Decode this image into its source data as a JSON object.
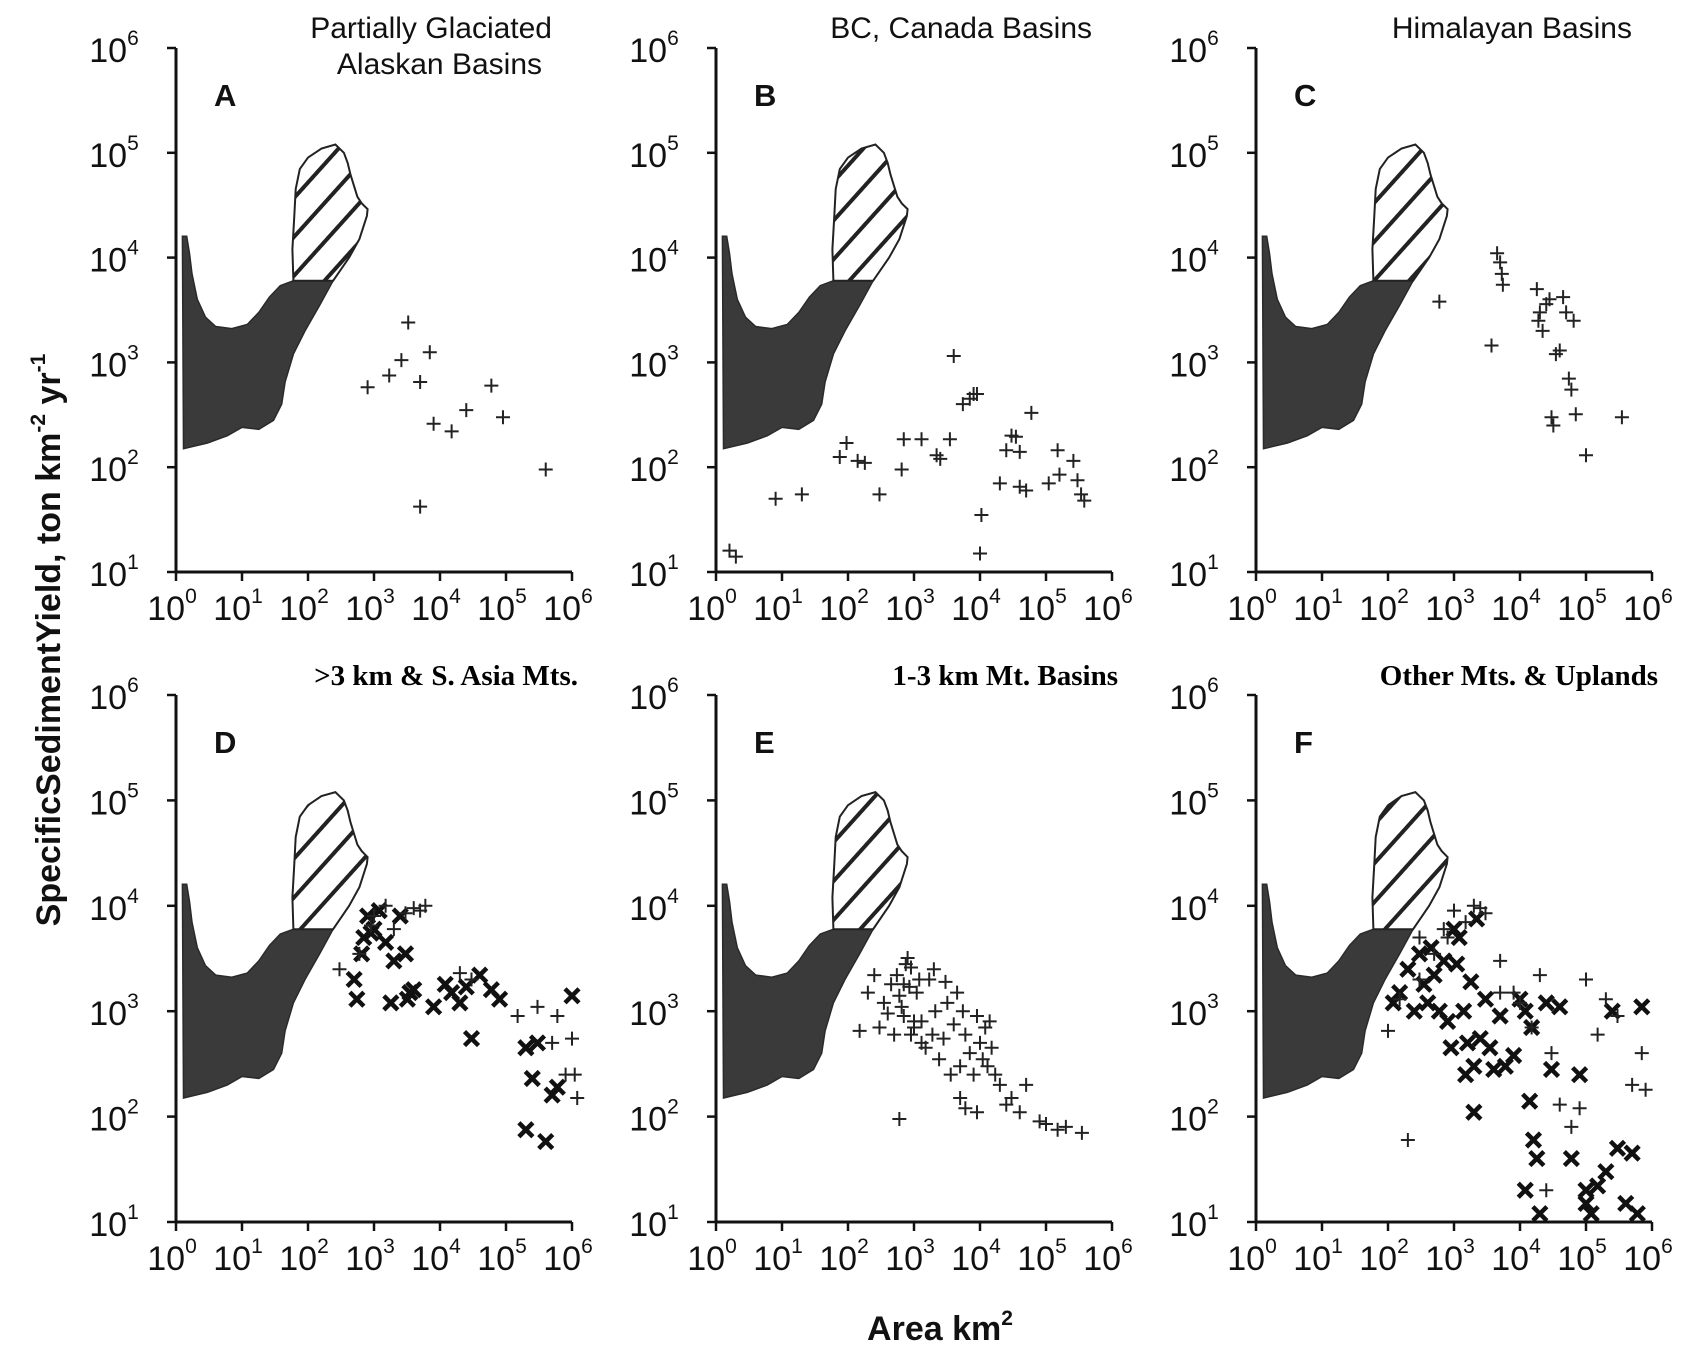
{
  "figure": {
    "ylabel": "SpecificSedimentYield, ton km-2 yr-1",
    "ylabel_parts": [
      "SpecificSedimentYield, ton km",
      "-2",
      " yr",
      "-1"
    ],
    "xlabel": "Area km2",
    "xlabel_parts": [
      "Area km",
      "2"
    ]
  },
  "chart_data": [
    {
      "type": "scatter",
      "panel": "A",
      "title": "Partially Glaciated Alaskan Basins",
      "title_lines": [
        "Partially Glaciated",
        "Alaskan Basins"
      ],
      "title_bold": false,
      "xlim": [
        1,
        1000000
      ],
      "ylim": [
        10,
        1000000
      ],
      "xscale": "log",
      "yscale": "log",
      "x_ticks": [
        1,
        10,
        100,
        1000,
        10000,
        100000,
        1000000
      ],
      "y_ticks": [
        10,
        100,
        1000,
        10000,
        100000,
        1000000
      ],
      "series": [
        {
          "marker": "+",
          "x": [
            800,
            1700,
            2600,
            3300,
            5000,
            7000,
            8000,
            15000,
            25000,
            60000,
            90000,
            400000,
            5000
          ],
          "y": [
            580,
            750,
            1050,
            2400,
            650,
            1250,
            260,
            220,
            350,
            600,
            300,
            95,
            42
          ]
        }
      ]
    },
    {
      "type": "scatter",
      "panel": "B",
      "title": "BC, Canada Basins",
      "title_lines": [
        "BC, Canada Basins"
      ],
      "title_bold": false,
      "xlim": [
        1,
        1000000
      ],
      "ylim": [
        10,
        1000000
      ],
      "xscale": "log",
      "yscale": "log",
      "x_ticks": [
        1,
        10,
        100,
        1000,
        10000,
        100000,
        1000000
      ],
      "y_ticks": [
        10,
        100,
        1000,
        10000,
        100000,
        1000000
      ],
      "series": [
        {
          "marker": "+",
          "x": [
            1.6,
            2,
            8,
            20,
            75,
            95,
            140,
            180,
            300,
            650,
            700,
            1300,
            2200,
            2500,
            3500,
            4000,
            5500,
            7000,
            9000,
            10000,
            10500,
            20000,
            25000,
            30000,
            35000,
            40000,
            40000,
            50000,
            60000,
            110000,
            150000,
            160000,
            260000,
            300000,
            340000,
            380000,
            8000
          ],
          "y": [
            16,
            14,
            50,
            55,
            125,
            170,
            115,
            110,
            55,
            95,
            185,
            185,
            130,
            120,
            185,
            1150,
            400,
            450,
            500,
            15,
            35,
            70,
            145,
            200,
            195,
            65,
            140,
            60,
            330,
            70,
            145,
            85,
            115,
            75,
            55,
            48,
            500
          ]
        }
      ]
    },
    {
      "type": "scatter",
      "panel": "C",
      "title": "Himalayan Basins",
      "title_lines": [
        "Himalayan Basins"
      ],
      "title_bold": false,
      "xlim": [
        1,
        1000000
      ],
      "ylim": [
        10,
        1000000
      ],
      "xscale": "log",
      "yscale": "log",
      "x_ticks": [
        1,
        10,
        100,
        1000,
        10000,
        100000,
        1000000
      ],
      "y_ticks": [
        10,
        100,
        1000,
        10000,
        100000,
        1000000
      ],
      "series": [
        {
          "marker": "+",
          "x": [
            600,
            3700,
            4500,
            5000,
            5300,
            5500,
            18000,
            19000,
            20000,
            22000,
            25000,
            30000,
            32000,
            35000,
            40000,
            45000,
            50000,
            55000,
            60000,
            65000,
            70000,
            100000,
            350000,
            28000
          ],
          "y": [
            3800,
            1450,
            11000,
            9000,
            7000,
            5500,
            5000,
            2500,
            3000,
            2000,
            3600,
            300,
            250,
            1200,
            1300,
            4200,
            3000,
            700,
            550,
            2500,
            320,
            130,
            300,
            4000
          ]
        }
      ]
    },
    {
      "type": "scatter",
      "panel": "D",
      "title": ">3 km & S. Asia Mts.",
      "title_lines": [
        ">3 km & S. Asia Mts."
      ],
      "title_bold": true,
      "xlim": [
        1,
        1000000
      ],
      "ylim": [
        10,
        1000000
      ],
      "xscale": "log",
      "yscale": "log",
      "x_ticks": [
        1,
        10,
        100,
        1000,
        10000,
        100000,
        1000000
      ],
      "y_ticks": [
        10,
        100,
        1000,
        10000,
        100000,
        1000000
      ],
      "series": [
        {
          "marker": "x",
          "x": [
            500,
            550,
            650,
            700,
            800,
            1000,
            1200,
            1500,
            2000,
            2500,
            3000,
            3200,
            3500,
            4000,
            1800,
            900,
            8000,
            12000,
            15000,
            20000,
            25000,
            30000,
            40000,
            60000,
            80000,
            200000,
            250000,
            300000,
            500000,
            1000000,
            200000,
            400000,
            600000
          ],
          "y": [
            2000,
            1300,
            3500,
            5000,
            8000,
            6000,
            9000,
            4500,
            3000,
            8000,
            3500,
            1300,
            1500,
            1600,
            1200,
            5500,
            1100,
            1800,
            1500,
            1200,
            1700,
            550,
            2200,
            1600,
            1300,
            450,
            230,
            500,
            160,
            1400,
            75,
            58,
            190
          ]
        },
        {
          "marker": "+",
          "x": [
            300,
            600,
            1000,
            1500,
            2000,
            3000,
            4000,
            5000,
            6000,
            900,
            20000,
            30000,
            150000,
            300000,
            600000,
            800000,
            1000000,
            1100000,
            1200000,
            500000
          ],
          "y": [
            2500,
            3500,
            8000,
            10000,
            6000,
            8500,
            9500,
            9000,
            10000,
            6500,
            2300,
            2000,
            900,
            1100,
            900,
            250,
            550,
            250,
            150,
            500
          ]
        }
      ]
    },
    {
      "type": "scatter",
      "panel": "E",
      "title": "1-3 km Mt. Basins",
      "title_lines": [
        "1-3 km Mt. Basins"
      ],
      "title_bold": true,
      "xlim": [
        1,
        1000000
      ],
      "ylim": [
        10,
        1000000
      ],
      "xscale": "log",
      "yscale": "log",
      "x_ticks": [
        1,
        10,
        100,
        1000,
        10000,
        100000,
        1000000
      ],
      "y_ticks": [
        10,
        100,
        1000,
        10000,
        100000,
        1000000
      ],
      "series": [
        {
          "marker": "+",
          "x": [
            150,
            200,
            250,
            300,
            350,
            400,
            450,
            500,
            550,
            600,
            650,
            700,
            750,
            800,
            850,
            900,
            1000,
            1100,
            1200,
            1300,
            1500,
            1700,
            1900,
            2100,
            2400,
            2800,
            3200,
            3600,
            4000,
            4500,
            5000,
            5500,
            6000,
            7000,
            8000,
            9000,
            10000,
            11000,
            12000,
            13000,
            14000,
            15000,
            17000,
            20000,
            25000,
            30000,
            40000,
            50000,
            80000,
            100000,
            150000,
            200000,
            350000,
            600,
            900,
            1000,
            1300,
            5000,
            6000,
            9000,
            700,
            2000,
            3000
          ],
          "y": [
            650,
            1500,
            2200,
            700,
            1200,
            950,
            1800,
            600,
            2200,
            1400,
            1100,
            900,
            2800,
            3200,
            1700,
            2600,
            700,
            1500,
            2000,
            800,
            450,
            2000,
            600,
            1000,
            350,
            550,
            1200,
            250,
            750,
            1500,
            300,
            1000,
            600,
            400,
            250,
            900,
            500,
            350,
            700,
            300,
            800,
            450,
            250,
            200,
            130,
            150,
            110,
            200,
            90,
            85,
            75,
            80,
            70,
            95,
            600,
            800,
            500,
            150,
            120,
            110,
            1800,
            2500,
            1900
          ]
        }
      ]
    },
    {
      "type": "scatter",
      "panel": "F",
      "title": "Other Mts. & Uplands",
      "title_lines": [
        "Other Mts. & Uplands"
      ],
      "title_bold": true,
      "xlim": [
        1,
        1000000
      ],
      "ylim": [
        10,
        1000000
      ],
      "xscale": "log",
      "yscale": "log",
      "x_ticks": [
        1,
        10,
        100,
        1000,
        10000,
        100000,
        1000000
      ],
      "y_ticks": [
        10,
        100,
        1000,
        10000,
        100000,
        1000000
      ],
      "series": [
        {
          "marker": "x",
          "x": [
            120,
            150,
            200,
            250,
            300,
            350,
            400,
            450,
            500,
            600,
            700,
            800,
            900,
            1000,
            1100,
            1200,
            1400,
            1600,
            1800,
            2000,
            2200,
            2500,
            3000,
            3500,
            4000,
            5000,
            6000,
            8000,
            10000,
            12000,
            14000,
            16000,
            18000,
            20000,
            25000,
            30000,
            40000,
            60000,
            80000,
            100000,
            120000,
            150000,
            200000,
            250000,
            300000,
            400000,
            500000,
            600000,
            700000,
            1500,
            2000,
            12000,
            15000,
            100000
          ],
          "y": [
            1200,
            1500,
            2500,
            1000,
            3500,
            1800,
            1200,
            4000,
            2200,
            1000,
            3000,
            800,
            450,
            6000,
            2800,
            5000,
            1000,
            500,
            1900,
            300,
            7500,
            550,
            1300,
            450,
            280,
            900,
            300,
            380,
            1300,
            1000,
            140,
            60,
            40,
            12,
            1200,
            280,
            1100,
            40,
            250,
            20,
            12,
            22,
            30,
            1000,
            50,
            15,
            45,
            12,
            1100,
            250,
            110,
            20,
            700,
            15
          ]
        },
        {
          "marker": "+",
          "x": [
            100,
            150,
            200,
            300,
            500,
            800,
            1000,
            1500,
            2000,
            3000,
            5000,
            8000,
            10000,
            15000,
            20000,
            30000,
            40000,
            60000,
            80000,
            100000,
            150000,
            200000,
            300000,
            500000,
            700000,
            800000,
            300,
            700,
            2500,
            5000,
            25000
          ],
          "y": [
            650,
            1300,
            60,
            2000,
            3500,
            5000,
            9000,
            7000,
            10000,
            8500,
            3000,
            1500,
            1200,
            700,
            2200,
            400,
            130,
            80,
            120,
            2000,
            600,
            1300,
            900,
            200,
            400,
            180,
            5000,
            6000,
            9500,
            1500,
            20
          ]
        }
      ]
    }
  ]
}
